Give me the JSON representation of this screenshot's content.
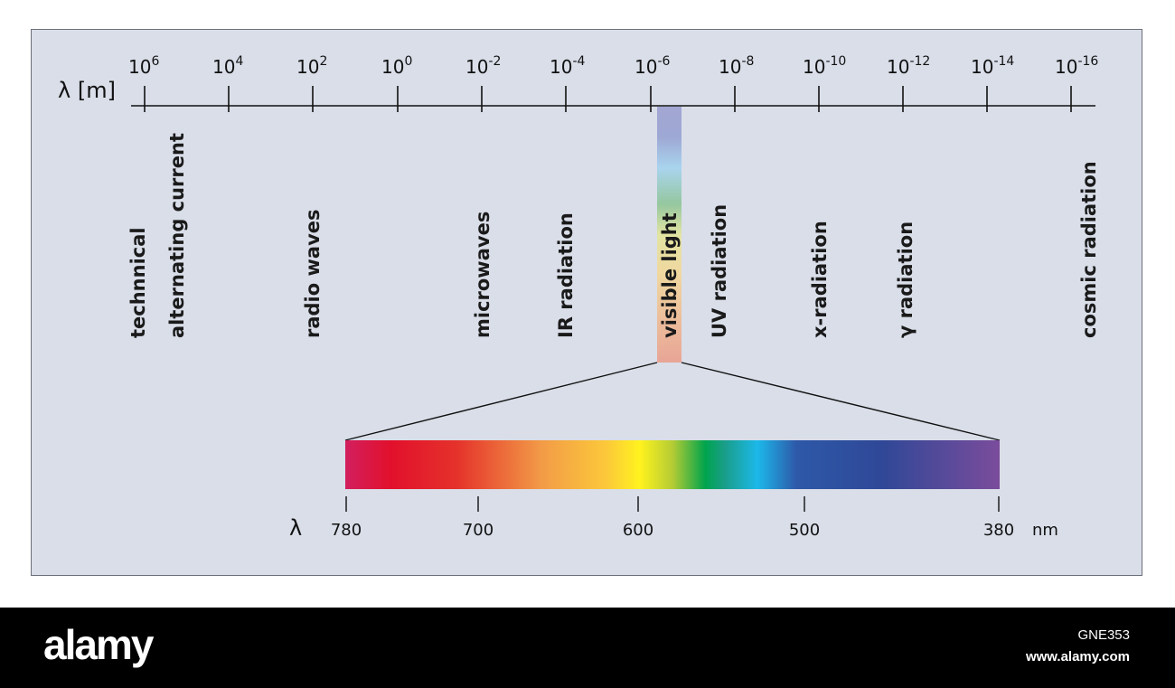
{
  "top_axis": {
    "label": "λ [m]",
    "ticks": [
      {
        "base": "10",
        "exp": "6"
      },
      {
        "base": "10",
        "exp": "4"
      },
      {
        "base": "10",
        "exp": "2"
      },
      {
        "base": "10",
        "exp": "0"
      },
      {
        "base": "10",
        "exp": "-2"
      },
      {
        "base": "10",
        "exp": "-4"
      },
      {
        "base": "10",
        "exp": "-6"
      },
      {
        "base": "10",
        "exp": "-8"
      },
      {
        "base": "10",
        "exp": "-10"
      },
      {
        "base": "10",
        "exp": "-12"
      },
      {
        "base": "10",
        "exp": "-14"
      },
      {
        "base": "10",
        "exp": "-16"
      }
    ]
  },
  "regions": [
    {
      "label": "technnical"
    },
    {
      "label": "alternating current"
    },
    {
      "label": "radio waves"
    },
    {
      "label": "microwaves"
    },
    {
      "label": "IR  radiation"
    },
    {
      "label": "visible light"
    },
    {
      "label": "UV  radiation"
    },
    {
      "label": "x-radiation"
    },
    {
      "label": "γ radiation"
    },
    {
      "label": "cosmic radiation"
    }
  ],
  "visible_axis": {
    "symbol": "λ",
    "unit": "nm",
    "ticks": [
      "780",
      "700",
      "600",
      "500",
      "380"
    ]
  },
  "colors": {
    "background": "#d9dee9",
    "footer": "#000000"
  },
  "footer": {
    "logo": "alamy",
    "image_id": "GNE353",
    "url": "www.alamy.com"
  }
}
